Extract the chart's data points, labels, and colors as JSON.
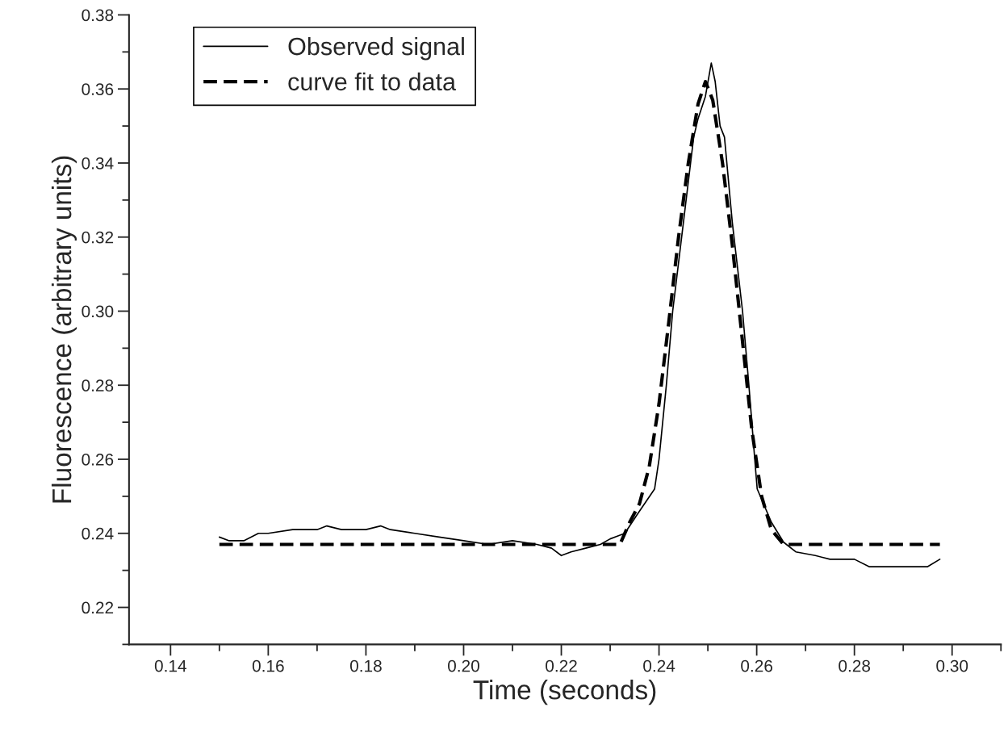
{
  "chart_data": {
    "type": "line",
    "xlabel": "Time (seconds)",
    "ylabel": "Fluorescence (arbitrary units)",
    "xlim": [
      0.1315,
      0.31
    ],
    "xticks": [
      {
        "value": 0.14,
        "label": "0.14"
      },
      {
        "value": 0.16,
        "label": "0.16"
      },
      {
        "value": 0.18,
        "label": "0.18"
      },
      {
        "value": 0.2,
        "label": "0.20"
      },
      {
        "value": 0.22,
        "label": "0.22"
      },
      {
        "value": 0.24,
        "label": "0.24"
      },
      {
        "value": 0.26,
        "label": "0.26"
      },
      {
        "value": 0.28,
        "label": "0.28"
      },
      {
        "value": 0.3,
        "label": "0.30"
      }
    ],
    "ylim": [
      0.21,
      0.38
    ],
    "yticks": [
      0.22,
      0.24,
      0.26,
      0.28,
      {
        "value": 0.3,
        "label": "0.30"
      },
      0.32,
      0.34,
      0.36,
      0.38
    ],
    "grid": false,
    "legend": "top left",
    "marker": "none",
    "series": [
      {
        "name": "Observed signal",
        "color": "#000000",
        "line_style": "solid",
        "x": [
          0.15,
          0.152,
          0.155,
          0.158,
          0.16,
          0.165,
          0.17,
          0.172,
          0.175,
          0.18,
          0.183,
          0.185,
          0.19,
          0.195,
          0.2,
          0.205,
          0.21,
          0.215,
          0.218,
          0.22,
          0.222,
          0.225,
          0.228,
          0.23,
          0.233,
          0.2355,
          0.2391,
          0.24,
          0.2415,
          0.2428,
          0.245,
          0.2471,
          0.248,
          0.2495,
          0.2507,
          0.2515,
          0.2525,
          0.2534,
          0.255,
          0.2571,
          0.2584,
          0.2596,
          0.2601,
          0.263,
          0.2655,
          0.268,
          0.272,
          0.275,
          0.28,
          0.283,
          0.29,
          0.295,
          0.2975
        ],
        "values": [
          0.239,
          0.238,
          0.238,
          0.24,
          0.24,
          0.241,
          0.241,
          0.242,
          0.241,
          0.241,
          0.242,
          0.241,
          0.24,
          0.239,
          0.238,
          0.237,
          0.238,
          0.237,
          0.236,
          0.234,
          0.235,
          0.236,
          0.237,
          0.2385,
          0.24,
          0.245,
          0.252,
          0.26,
          0.28,
          0.3,
          0.324,
          0.347,
          0.352,
          0.358,
          0.367,
          0.362,
          0.35,
          0.347,
          0.324,
          0.3,
          0.28,
          0.26,
          0.252,
          0.243,
          0.2376,
          0.235,
          0.234,
          0.233,
          0.233,
          0.231,
          0.231,
          0.231,
          0.233
        ]
      },
      {
        "name": "curve fit to data",
        "color": "#000000",
        "line_style": "dashed",
        "x": [
          0.15,
          0.232,
          0.234,
          0.236,
          0.238,
          0.24,
          0.242,
          0.244,
          0.246,
          0.248,
          0.2495,
          0.251,
          0.253,
          0.255,
          0.257,
          0.259,
          0.261,
          0.263,
          0.2655,
          0.2975
        ],
        "values": [
          0.237,
          0.237,
          0.243,
          0.248,
          0.258,
          0.275,
          0.297,
          0.32,
          0.34,
          0.356,
          0.362,
          0.357,
          0.34,
          0.318,
          0.293,
          0.268,
          0.25,
          0.241,
          0.237,
          0.237
        ]
      }
    ]
  }
}
